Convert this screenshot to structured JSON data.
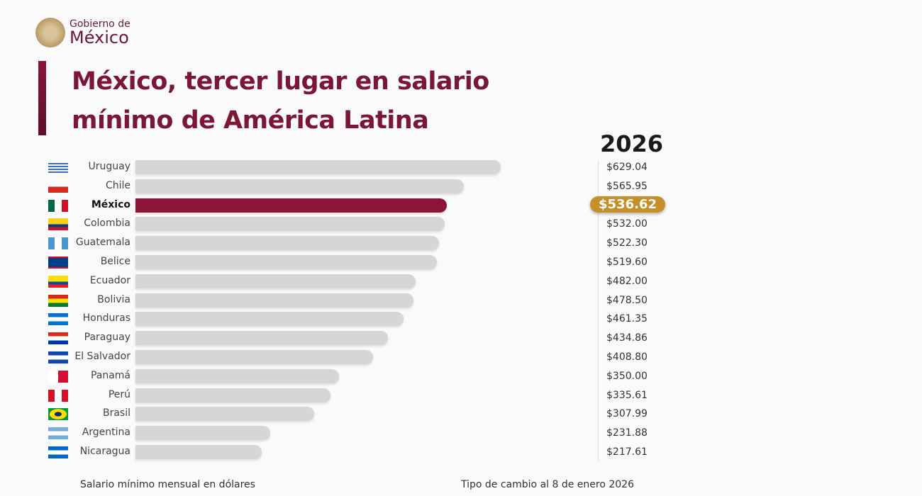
{
  "logo": {
    "line1": "Gobierno de",
    "line2": "México"
  },
  "chart_data": {
    "type": "bar",
    "orientation": "horizontal",
    "title": "México, tercer lugar en salario mínimo de América Latina",
    "column_header": "2026",
    "categories": [
      "Uruguay",
      "Chile",
      "México",
      "Colombia",
      "Guatemala",
      "Belice",
      "Ecuador",
      "Bolivia",
      "Honduras",
      "Paraguay",
      "El Salvador",
      "Panamá",
      "Perú",
      "Brasil",
      "Argentina",
      "Nicaragua"
    ],
    "values": [
      629.04,
      565.95,
      536.62,
      532.0,
      522.3,
      519.6,
      482.0,
      478.5,
      461.35,
      434.86,
      408.8,
      350.0,
      335.61,
      307.99,
      231.88,
      217.61
    ],
    "value_labels": [
      "$629.04",
      "$565.95",
      "$536.62",
      "$532.00",
      "$522.30",
      "$519.60",
      "$482.00",
      "$478.50",
      "$461.35",
      "$434.86",
      "$408.80",
      "$350.00",
      "$335.61",
      "$307.99",
      "$231.88",
      "$217.61"
    ],
    "highlight": "México",
    "colors": {
      "bar": "#d6d6d6",
      "highlight_bar": "#8a1538",
      "highlight_label": "#c58f2a",
      "title": "#7b1635"
    },
    "xlim": [
      0,
      629.04
    ],
    "grid": false
  },
  "footer": {
    "left": "Salario mínimo mensual en dólares",
    "right": "Tipo de cambio al 8 de enero 2026"
  }
}
